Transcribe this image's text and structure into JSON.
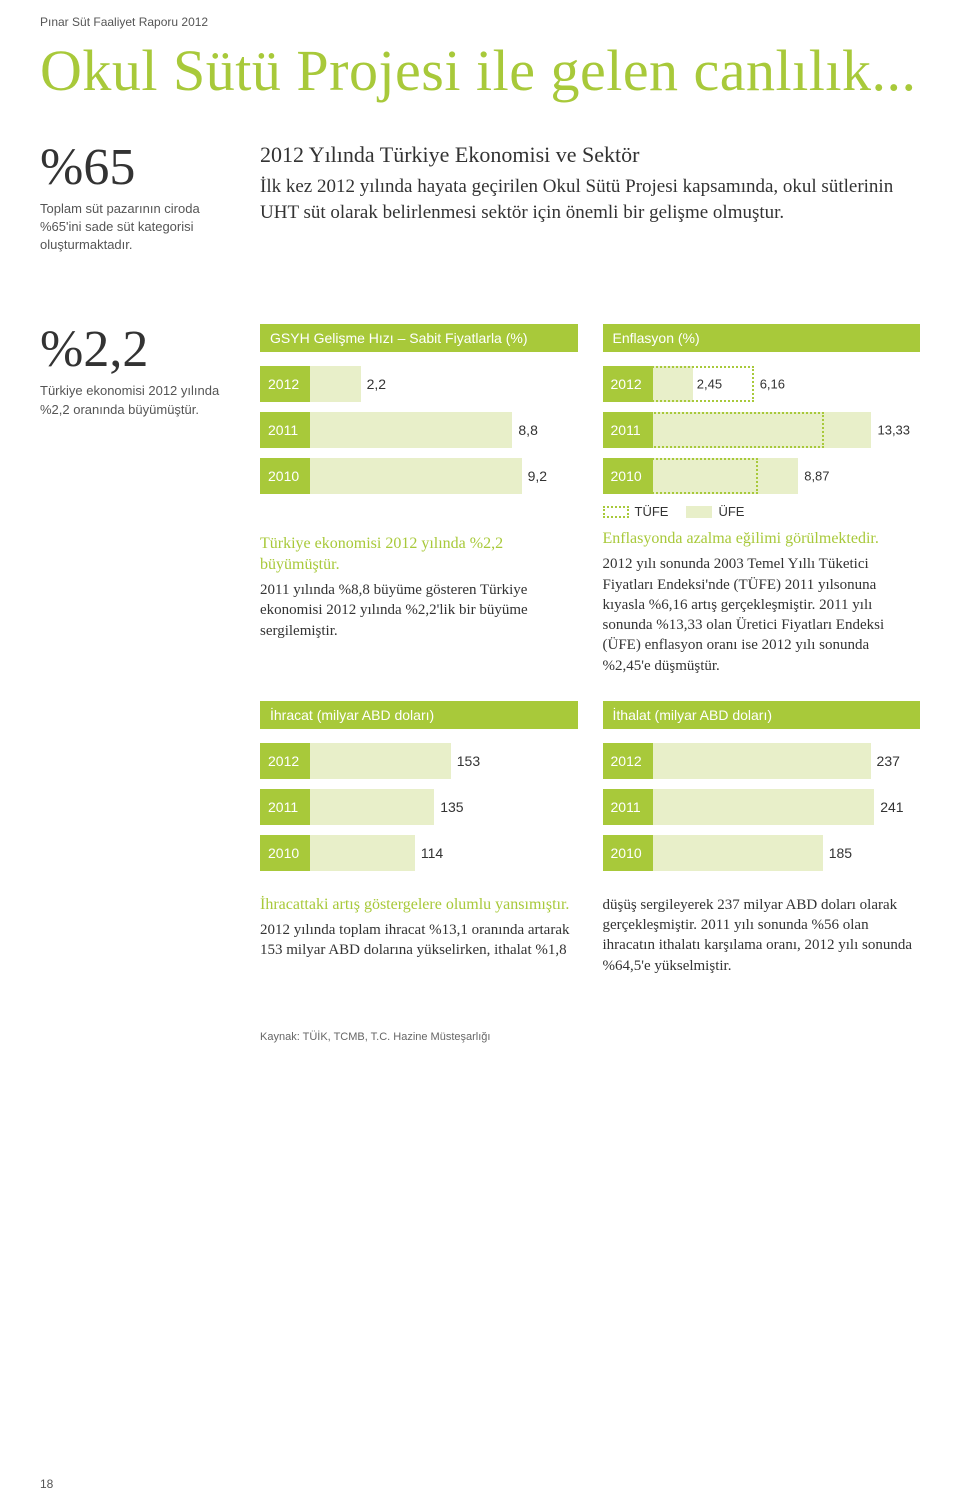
{
  "header": "Pınar Süt Faaliyet Raporu 2012",
  "title": "Okul Sütü Projesi ile gelen canlılık...",
  "stat65": {
    "num": "%65",
    "desc": "Toplam süt pazarının ciroda %65'ini sade süt kategorisi oluşturmaktadır."
  },
  "stat22": {
    "num": "%2,2",
    "desc": "Türkiye ekonomisi 2012 yılında %2,2 oranında büyümüştür."
  },
  "intro": {
    "heading": "2012 Yılında Türkiye Ekonomisi ve Sektör",
    "body": "İlk kez 2012 yılında hayata geçirilen Okul Sütü Projesi kapsamında, okul sütlerinin UHT süt olarak belirlenmesi sektör için önemli bir gelişme olmuştur."
  },
  "colors": {
    "accent": "#a8c93a",
    "barfill": "#e8efc9",
    "text": "#333333",
    "bg": "#ffffff"
  },
  "gsyh": {
    "title": "GSYH Gelişme Hızı – Sabit Fiyatlarla (%)",
    "max": 10,
    "rows": [
      {
        "year": "2012",
        "val": "2,2",
        "num": 2.2
      },
      {
        "year": "2011",
        "val": "8,8",
        "num": 8.8
      },
      {
        "year": "2010",
        "val": "9,2",
        "num": 9.2
      }
    ],
    "subhead": "Türkiye ekonomisi 2012 yılında %2,2 büyümüştür.",
    "text": "2011 yılında %8,8 büyüme gösteren Türkiye ekonomisi 2012 yılında %2,2'lik bir büyüme sergilemiştir."
  },
  "enflasyon": {
    "title": "Enflasyon (%)",
    "max": 14,
    "legend": {
      "tufe": "TÜFE",
      "ufe": "ÜFE"
    },
    "rows": [
      {
        "year": "2012",
        "tufe": "6,16",
        "tufe_n": 6.16,
        "ufe": "2,45",
        "ufe_n": 2.45
      },
      {
        "year": "2011",
        "tufe": "10,45",
        "tufe_n": 10.45,
        "ufe": "13,33",
        "ufe_n": 13.33
      },
      {
        "year": "2010",
        "tufe": "6,40",
        "tufe_n": 6.4,
        "ufe": "8,87",
        "ufe_n": 8.87
      }
    ],
    "subhead": "Enflasyonda azalma eğilimi görülmektedir.",
    "text": "2012 yılı sonunda 2003 Temel Yıllı Tüketici Fiyatları Endeksi'nde (TÜFE) 2011 yılsonuna kıyasla %6,16 artış gerçekleşmiştir. 2011 yılı sonunda %13,33 olan Üretici Fiyatları Endeksi (ÜFE) enflasyon oranı ise 2012 yılı sonunda %2,45'e düşmüştür."
  },
  "ihracat": {
    "title": "İhracat (milyar ABD doları)",
    "max": 250,
    "rows": [
      {
        "year": "2012",
        "val": "153",
        "num": 153
      },
      {
        "year": "2011",
        "val": "135",
        "num": 135
      },
      {
        "year": "2010",
        "val": "114",
        "num": 114
      }
    ],
    "subhead": "İhracattaki artış göstergelere olumlu yansımıştır.",
    "text": "2012 yılında toplam ihracat %13,1 oranında artarak 153 milyar ABD dolarına yükselirken, ithalat %1,8"
  },
  "ithalat": {
    "title": "İthalat (milyar ABD doları)",
    "max": 250,
    "rows": [
      {
        "year": "2012",
        "val": "237",
        "num": 237
      },
      {
        "year": "2011",
        "val": "241",
        "num": 241
      },
      {
        "year": "2010",
        "val": "185",
        "num": 185
      }
    ],
    "text": "düşüş sergileyerek 237 milyar ABD doları olarak gerçekleşmiştir. 2011 yılı sonunda %56 olan ihracatın ithalatı karşılama oranı, 2012 yılı sonunda %64,5'e yükselmiştir."
  },
  "source": "Kaynak: TÜİK, TCMB, T.C. Hazine Müsteşarlığı",
  "pagenum": "18"
}
